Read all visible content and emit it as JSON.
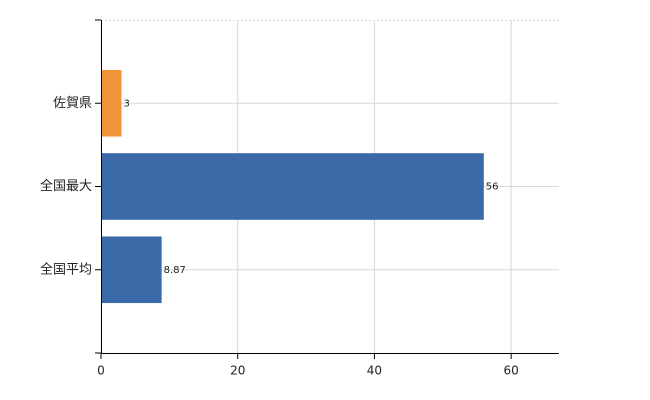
{
  "chart_data": {
    "type": "barh",
    "categories": [
      "佐賀県",
      "全国最大",
      "全国平均"
    ],
    "values": [
      3,
      56,
      8.87
    ],
    "colors": [
      "#f0953a",
      "#3b6aa9",
      "#3b6aa9"
    ],
    "xlim": [
      0,
      67
    ],
    "xticks": [
      0,
      20,
      40,
      60
    ],
    "grid": true
  }
}
